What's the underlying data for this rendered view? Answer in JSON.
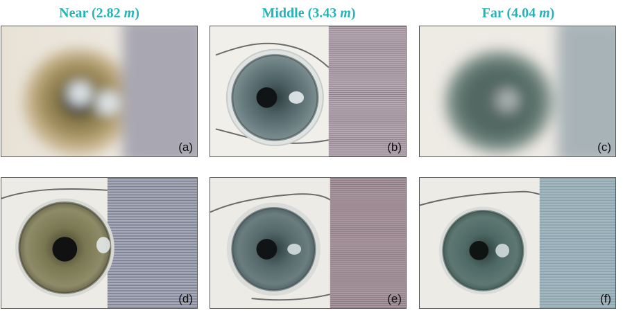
{
  "columns": [
    {
      "label": "Near (2.82 ",
      "unit": "m",
      "close": ")"
    },
    {
      "label": "Middle (3.43 ",
      "unit": "m",
      "close": ")"
    },
    {
      "label": "Far (4.04 ",
      "unit": "m",
      "close": ")"
    }
  ],
  "panels": [
    {
      "label": "(a)",
      "row": "top",
      "focus": "blurred",
      "iris_color": "#8a7a4a"
    },
    {
      "label": "(b)",
      "row": "top",
      "focus": "sharp",
      "iris_color": "#5b6f73"
    },
    {
      "label": "(c)",
      "row": "top",
      "focus": "blurred",
      "iris_color": "#4f6660"
    },
    {
      "label": "(d)",
      "row": "bottom",
      "focus": "sharp",
      "iris_color": "#7a7750"
    },
    {
      "label": "(e)",
      "row": "bottom",
      "focus": "sharp",
      "iris_color": "#5d7173"
    },
    {
      "label": "(f)",
      "row": "bottom",
      "focus": "sharp",
      "iris_color": "#4f6a66"
    }
  ],
  "colors": {
    "title": "#26b3b6",
    "border": "#555555"
  }
}
